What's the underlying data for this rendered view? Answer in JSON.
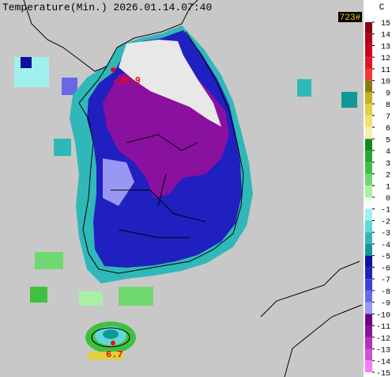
{
  "header": {
    "title": "Temperature(Min.) 2026.01.14.07:40",
    "count": "723#",
    "unit": "C"
  },
  "stations": [
    {
      "label": "-20.9"
    },
    {
      "label": "6.7"
    }
  ],
  "colorbar": {
    "ticks": [
      15,
      14,
      13,
      12,
      11,
      10,
      9,
      8,
      7,
      6,
      5,
      4,
      3,
      2,
      1,
      0,
      -1,
      -2,
      -3,
      -4,
      -5,
      -6,
      -7,
      -8,
      -9,
      -10,
      -11,
      -12,
      -13,
      -14,
      -15
    ],
    "colors": [
      "#8a0010",
      "#b0001a",
      "#d0001a",
      "#e8102a",
      "#f03838",
      "#8a7a10",
      "#c8b020",
      "#e0d040",
      "#f0e070",
      "#f8f0b0",
      "#108a20",
      "#20a830",
      "#40c040",
      "#70d870",
      "#a8f0a8",
      "#f4fff4",
      "#a0f0f0",
      "#60d8d8",
      "#30b8b8",
      "#109898",
      "#1010a0",
      "#2020c0",
      "#4040d8",
      "#6868e8",
      "#9898f4",
      "#6a0080",
      "#8a10a0",
      "#b030c0",
      "#d050d8",
      "#f080f0"
    ]
  }
}
